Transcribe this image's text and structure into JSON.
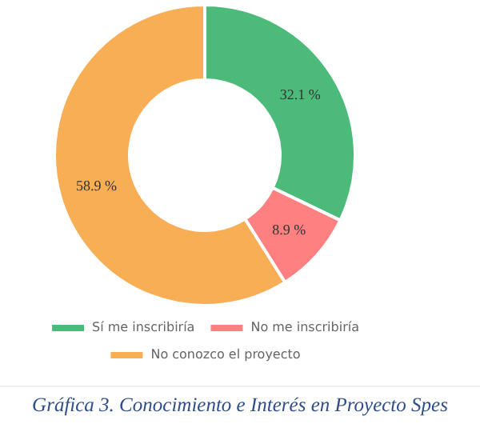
{
  "chart_data": {
    "type": "donut",
    "title": "Gráfica 3. Conocimiento e Interés en Proyecto Spes",
    "categories": [
      "Sí me inscribiría",
      "No me inscribiría",
      "No conozco el proyecto"
    ],
    "values": [
      32.1,
      8.9,
      58.9
    ],
    "value_labels": [
      "32.1 %",
      "8.9 %",
      "58.9 %"
    ],
    "colors": [
      "#4cbb7a",
      "#ff8080",
      "#f7ae55"
    ],
    "legend": "bottom"
  }
}
